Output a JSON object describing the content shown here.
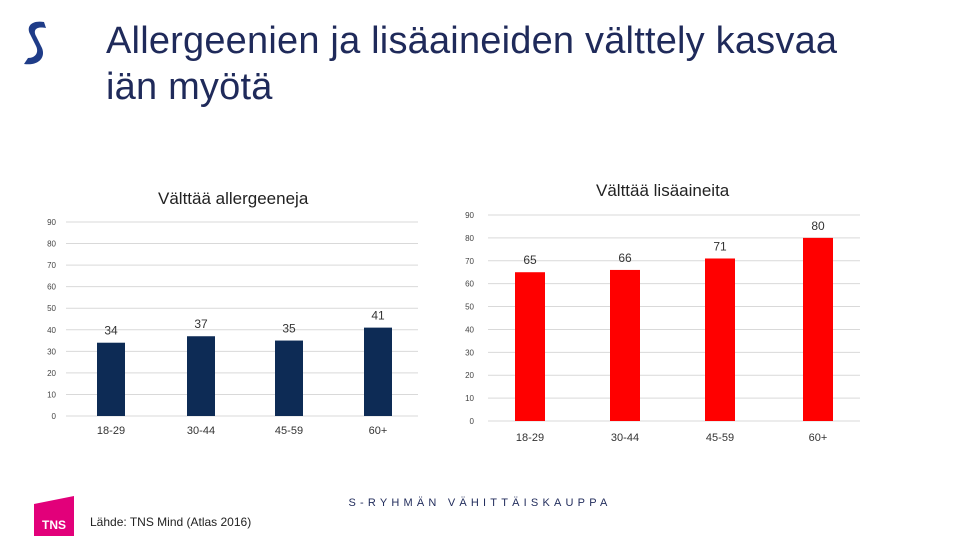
{
  "header": {
    "title_line1": "Allergeenien ja lisäaineiden välttely kasvaa",
    "title_line2": "iän myötä"
  },
  "colors": {
    "navy": "#0d2b55",
    "red": "#ff0000",
    "grid": "#d9d9d9",
    "brand": "#1f3c88",
    "tns": "#e2007a"
  },
  "chart_data": [
    {
      "type": "bar",
      "title": "Välttää allergeeneja",
      "categories": [
        "18-29",
        "30-44",
        "45-59",
        "60+"
      ],
      "values": [
        34,
        37,
        35,
        41
      ],
      "ylim": [
        0,
        90
      ],
      "yticks": [
        0,
        10,
        20,
        30,
        40,
        50,
        60,
        70,
        80,
        90
      ],
      "ytick_labels": [
        "0",
        "10",
        "20",
        "30",
        "40",
        "50",
        "60",
        "70",
        "80",
        "90"
      ],
      "color": "#0d2b55",
      "grid": true
    },
    {
      "type": "bar",
      "title": "Välttää lisäaineita",
      "categories": [
        "18-29",
        "30-44",
        "45-59",
        "60+"
      ],
      "values": [
        65,
        66,
        71,
        80
      ],
      "ylim": [
        0,
        90
      ],
      "yticks": [
        0,
        10,
        20,
        30,
        40,
        50,
        60,
        70,
        80,
        90
      ],
      "ytick_labels": [
        "0",
        "10",
        "20",
        "30",
        "40",
        "50",
        "60",
        "70",
        "80",
        "90"
      ],
      "color": "#ff0000",
      "grid": true
    }
  ],
  "footer": {
    "center_text": "S-RYHMÄN VÄHITTÄISKAUPPA",
    "source": "Lähde: TNS Mind (Atlas 2016)",
    "tns_logo_text": "TNS"
  },
  "icons": {
    "brand_logo": "s-group-logo-icon"
  }
}
